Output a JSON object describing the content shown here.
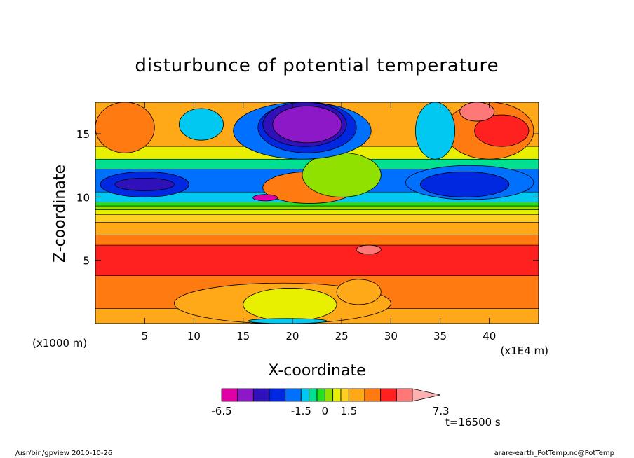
{
  "chart_data": {
    "type": "heatmap",
    "title": "disturbunce of potential temperature",
    "xlabel": "X-coordinate",
    "ylabel": "Z-coordinate",
    "x_unit": "(x1E4 m)",
    "y_unit": "(x1000 m)",
    "xlim": [
      0,
      45
    ],
    "ylim": [
      0,
      17.5
    ],
    "xticks": [
      5,
      10,
      15,
      20,
      25,
      30,
      35,
      40
    ],
    "yticks": [
      5,
      10,
      15
    ],
    "colorbar": {
      "levels": [
        -6.5,
        -5.5,
        -4.5,
        -3.5,
        -2.5,
        -1.5,
        -1.0,
        -0.5,
        0,
        0.5,
        1.0,
        1.5,
        2.5,
        3.5,
        4.5,
        5.5,
        7.3
      ],
      "colors": [
        "#e000a8",
        "#8c18c8",
        "#3010b8",
        "#0028e0",
        "#0070ff",
        "#00c8f0",
        "#00e090",
        "#20e020",
        "#90e000",
        "#e8f000",
        "#ffd020",
        "#ffa818",
        "#ff7a10",
        "#ff2020",
        "#ff7878",
        "#ffb0b0"
      ],
      "labels": [
        "-6.5",
        "-1.5",
        "0",
        "1.5",
        "7.3"
      ],
      "label_values": [
        -6.5,
        -1.5,
        0,
        1.5,
        7.3
      ]
    },
    "bands": [
      {
        "z0": 0.0,
        "z1": 1.2,
        "value": 2.0
      },
      {
        "z0": 1.2,
        "z1": 3.8,
        "value": 2.8
      },
      {
        "z0": 3.8,
        "z1": 6.2,
        "value": 3.8
      },
      {
        "z0": 6.2,
        "z1": 7.0,
        "value": 2.8
      },
      {
        "z0": 7.0,
        "z1": 8.0,
        "value": 2.0
      },
      {
        "z0": 8.0,
        "z1": 8.6,
        "value": 1.2
      },
      {
        "z0": 8.6,
        "z1": 9.0,
        "value": 0.7
      },
      {
        "z0": 9.0,
        "z1": 9.3,
        "value": 0.2
      },
      {
        "z0": 9.3,
        "z1": 9.6,
        "value": -0.3
      },
      {
        "z0": 9.6,
        "z1": 10.4,
        "value": -1.2
      },
      {
        "z0": 10.4,
        "z1": 12.2,
        "value": -1.7
      },
      {
        "z0": 12.2,
        "z1": 13.0,
        "value": -0.7
      },
      {
        "z0": 13.0,
        "z1": 14.0,
        "value": 0.7
      },
      {
        "z0": 14.0,
        "z1": 17.5,
        "value": 1.5
      }
    ],
    "features": [
      {
        "x0": 0.5,
        "x1": 9.5,
        "z0": 10.0,
        "z1": 12.0,
        "value": -3.0
      },
      {
        "x0": 2.0,
        "x1": 8.0,
        "z0": 10.5,
        "z1": 11.5,
        "value": -4.0
      },
      {
        "x0": 17.0,
        "x1": 26.5,
        "z0": 9.5,
        "z1": 12.0,
        "value": 2.8
      },
      {
        "x0": 16.0,
        "x1": 18.5,
        "z0": 9.7,
        "z1": 10.2,
        "value": -6.0
      },
      {
        "x0": 21.0,
        "x1": 29.0,
        "z0": 10.0,
        "z1": 13.5,
        "value": 0.3
      },
      {
        "x0": 14.0,
        "x1": 28.0,
        "z0": 13.0,
        "z1": 17.5,
        "value": -1.7
      },
      {
        "x0": 16.5,
        "x1": 26.5,
        "z0": 13.5,
        "z1": 17.5,
        "value": -3.0
      },
      {
        "x0": 17.0,
        "x1": 25.5,
        "z0": 14.0,
        "z1": 17.5,
        "value": -4.0
      },
      {
        "x0": 18.0,
        "x1": 25.0,
        "z0": 14.3,
        "z1": 17.2,
        "value": -5.0
      },
      {
        "x0": 8.5,
        "x1": 13.0,
        "z0": 14.5,
        "z1": 17.0,
        "value": -1.5
      },
      {
        "x0": 0.0,
        "x1": 6.0,
        "z0": 13.5,
        "z1": 17.5,
        "value": 2.8
      },
      {
        "x0": 35.5,
        "x1": 44.5,
        "z0": 13.0,
        "z1": 17.5,
        "value": 2.8
      },
      {
        "x0": 38.5,
        "x1": 44.0,
        "z0": 14.0,
        "z1": 16.5,
        "value": 3.8
      },
      {
        "x0": 32.5,
        "x1": 36.5,
        "z0": 13.0,
        "z1": 17.5,
        "value": -1.2
      },
      {
        "x0": 31.5,
        "x1": 44.5,
        "z0": 9.8,
        "z1": 12.5,
        "value": -1.7
      },
      {
        "x0": 33.0,
        "x1": 42.0,
        "z0": 10.0,
        "z1": 12.0,
        "value": -3.0
      },
      {
        "x0": 8.0,
        "x1": 30.0,
        "z0": 0.0,
        "z1": 3.2,
        "value": 1.7
      },
      {
        "x0": 15.0,
        "x1": 24.5,
        "z0": 0.2,
        "z1": 2.8,
        "value": 0.7
      },
      {
        "x0": 15.5,
        "x1": 23.5,
        "z0": 0.0,
        "z1": 0.4,
        "value": -1.2
      },
      {
        "x0": 24.5,
        "x1": 29.0,
        "z0": 1.5,
        "z1": 3.5,
        "value": 2.3
      },
      {
        "x0": 26.5,
        "x1": 29.0,
        "z0": 5.5,
        "z1": 6.2,
        "value": 4.5
      },
      {
        "x0": 37.0,
        "x1": 40.5,
        "z0": 16.0,
        "z1": 17.5,
        "value": 4.5
      }
    ]
  },
  "time_label": "t=16500 s",
  "footer_left": "/usr/bin/gpview  2010-10-26",
  "footer_right": "arare-earth_PotTemp.nc@PotTemp"
}
